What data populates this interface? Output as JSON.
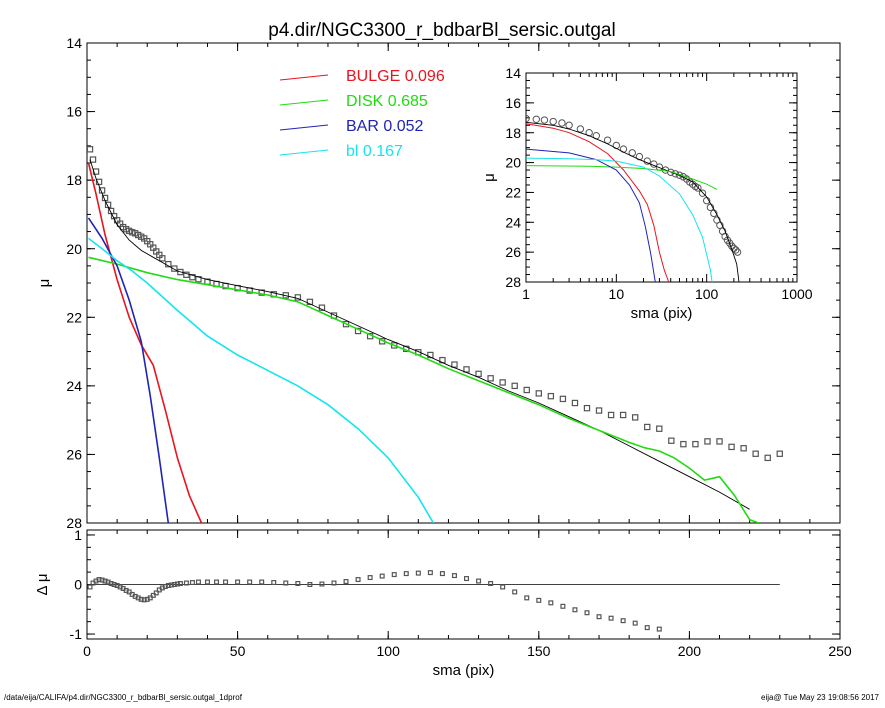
{
  "title": "p4.dir/NGC3300_r_bdbarBl_sersic.outgal",
  "footer_left": "/data/eija/CALIFA/p4.dir/NGC3300_r_bdbarBl_sersic.outgal_1dprof",
  "footer_right": "eija@  Tue May 23 19:08:56 2017",
  "colors": {
    "bulge": "#e8141e",
    "disk": "#1fdc10",
    "bar": "#1f24b4",
    "bl": "#15e4ee",
    "data": "#555555",
    "model": "#000000"
  },
  "chart_data": [
    {
      "id": "main",
      "type": "line",
      "xlabel": "sma (pix)",
      "ylabel": "μ",
      "xlim": [
        0,
        250
      ],
      "ylim": [
        28,
        14
      ],
      "y_inverted": true,
      "xticks": [
        "0",
        "50",
        "100",
        "150",
        "200",
        "250"
      ],
      "yticks": [
        "14",
        "16",
        "18",
        "20",
        "22",
        "24",
        "26",
        "28"
      ],
      "legend": [
        {
          "label": "BULGE",
          "value": "0.096",
          "color": "#e8141e"
        },
        {
          "label": "DISK",
          "value": "0.685",
          "color": "#1fdc10"
        },
        {
          "label": "BAR",
          "value": "0.052",
          "color": "#1f24b4"
        },
        {
          "label": "bl",
          "value": "0.167",
          "color": "#15e4ee"
        }
      ],
      "legend_position": "top-center",
      "series": [
        {
          "name": "data",
          "kind": "markers",
          "x": [
            1,
            2,
            3,
            4,
            5,
            6,
            7,
            8,
            9,
            10,
            11,
            12,
            13,
            14,
            15,
            16,
            17,
            18,
            19,
            20,
            21,
            22,
            23,
            24,
            25,
            27,
            29,
            31,
            33,
            35,
            37,
            40,
            43,
            46,
            50,
            54,
            58,
            62,
            66,
            70,
            74,
            78,
            82,
            86,
            90,
            94,
            98,
            102,
            106,
            110,
            114,
            118,
            122,
            126,
            130,
            134,
            138,
            142,
            146,
            150,
            154,
            158,
            162,
            166,
            170,
            174,
            178,
            182,
            186,
            190,
            194,
            198,
            202,
            206,
            210,
            214,
            218,
            222,
            226,
            230
          ],
          "y": [
            17.1,
            17.4,
            17.75,
            18.05,
            18.3,
            18.52,
            18.72,
            18.9,
            19.05,
            19.17,
            19.27,
            19.37,
            19.43,
            19.48,
            19.52,
            19.55,
            19.6,
            19.65,
            19.7,
            19.78,
            19.87,
            19.97,
            20.08,
            20.18,
            20.28,
            20.45,
            20.58,
            20.68,
            20.76,
            20.83,
            20.89,
            20.96,
            21.03,
            21.09,
            21.15,
            21.22,
            21.28,
            21.33,
            21.36,
            21.42,
            21.55,
            21.72,
            21.95,
            22.2,
            22.4,
            22.55,
            22.7,
            22.82,
            22.92,
            23.02,
            23.1,
            23.25,
            23.38,
            23.52,
            23.65,
            23.78,
            23.9,
            24.0,
            24.12,
            24.22,
            24.3,
            24.38,
            24.5,
            24.65,
            24.72,
            24.85,
            24.85,
            24.92,
            25.2,
            25.25,
            25.6,
            25.7,
            25.7,
            25.62,
            25.62,
            25.78,
            25.82,
            25.98,
            26.1,
            25.98
          ]
        },
        {
          "name": "model",
          "kind": "line",
          "x": [
            1,
            3,
            6,
            10,
            14,
            18,
            22,
            26,
            30,
            40,
            50,
            60,
            70,
            80,
            90,
            100,
            110,
            120,
            130,
            140,
            150,
            160,
            170,
            180,
            190,
            200,
            210,
            220
          ],
          "y": [
            17.4,
            17.95,
            18.6,
            19.3,
            19.75,
            20.05,
            20.25,
            20.45,
            20.65,
            20.9,
            21.08,
            21.25,
            21.45,
            21.85,
            22.25,
            22.65,
            23.0,
            23.4,
            23.75,
            24.15,
            24.5,
            24.9,
            25.3,
            25.75,
            26.2,
            26.65,
            27.1,
            27.6
          ]
        },
        {
          "name": "BULGE",
          "kind": "line",
          "x": [
            0.5,
            3,
            6,
            10,
            14,
            18,
            22,
            26,
            30,
            34,
            38
          ],
          "y": [
            17.5,
            18.4,
            19.6,
            20.9,
            22.0,
            22.8,
            23.4,
            24.7,
            26.1,
            27.2,
            28.0
          ]
        },
        {
          "name": "DISK",
          "kind": "line",
          "x": [
            0.5,
            10,
            20,
            30,
            40,
            50,
            60,
            70,
            75,
            80,
            90,
            100,
            110,
            120,
            130,
            140,
            150,
            160,
            170,
            180,
            185,
            190,
            195,
            200,
            205,
            210,
            215,
            220,
            223
          ],
          "y": [
            20.25,
            20.45,
            20.7,
            20.9,
            21.05,
            21.2,
            21.35,
            21.55,
            21.75,
            21.95,
            22.35,
            22.75,
            23.1,
            23.5,
            23.85,
            24.2,
            24.55,
            24.95,
            25.3,
            25.65,
            25.8,
            25.9,
            26.1,
            26.4,
            26.75,
            26.65,
            27.2,
            27.9,
            28.0
          ]
        },
        {
          "name": "BAR",
          "kind": "line",
          "x": [
            0.5,
            5,
            10,
            14,
            18,
            21,
            24,
            27
          ],
          "y": [
            19.1,
            19.7,
            20.5,
            21.5,
            22.7,
            24.3,
            26.1,
            28.0
          ]
        },
        {
          "name": "bl",
          "kind": "line",
          "x": [
            0.5,
            5,
            10,
            15,
            20,
            30,
            40,
            50,
            60,
            70,
            80,
            90,
            100,
            110,
            115
          ],
          "y": [
            19.7,
            20.0,
            20.35,
            20.65,
            21.0,
            21.8,
            22.55,
            23.1,
            23.55,
            24.0,
            24.55,
            25.25,
            26.1,
            27.25,
            28.0
          ]
        }
      ]
    },
    {
      "id": "inset",
      "type": "line",
      "xlabel": "sma (pix)",
      "ylabel": "μ",
      "xscale": "log",
      "xlim": [
        1,
        1000
      ],
      "ylim": [
        28,
        14
      ],
      "y_inverted": true,
      "xticks": [
        "1",
        "10",
        "100",
        "1000"
      ],
      "yticks": [
        "14",
        "16",
        "18",
        "20",
        "22",
        "24",
        "26",
        "28"
      ],
      "series": [
        {
          "name": "data",
          "kind": "markers",
          "x": [
            1,
            1.3,
            1.6,
            2,
            2.5,
            3,
            4,
            5,
            6,
            8,
            10,
            12,
            15,
            18,
            22,
            26,
            30,
            35,
            40,
            45,
            50,
            55,
            60,
            65,
            70,
            75,
            80,
            90,
            100,
            110,
            120,
            130,
            140,
            150,
            160,
            170,
            180,
            190,
            200,
            210,
            220
          ],
          "y": [
            17.05,
            17.1,
            17.15,
            17.25,
            17.35,
            17.5,
            17.75,
            18.0,
            18.2,
            18.5,
            18.85,
            19.1,
            19.35,
            19.6,
            19.9,
            20.1,
            20.3,
            20.5,
            20.65,
            20.75,
            20.85,
            20.95,
            21.1,
            21.3,
            21.45,
            21.6,
            21.7,
            22.05,
            22.55,
            23.0,
            23.4,
            23.85,
            24.2,
            24.6,
            24.95,
            25.2,
            25.4,
            25.6,
            25.75,
            25.85,
            26.0
          ]
        },
        {
          "name": "model",
          "kind": "line",
          "x": [
            1,
            2,
            3,
            5,
            8,
            12,
            18,
            25,
            35,
            50,
            70,
            100,
            130,
            160,
            190,
            215,
            228
          ],
          "y": [
            17.3,
            17.5,
            17.75,
            18.2,
            18.75,
            19.3,
            19.8,
            20.15,
            20.5,
            20.85,
            21.3,
            22.3,
            23.5,
            24.6,
            25.8,
            26.8,
            28.0
          ]
        },
        {
          "name": "BULGE",
          "kind": "line",
          "x": [
            1,
            2,
            3,
            5,
            8,
            12,
            18,
            22,
            26,
            30,
            34,
            38
          ],
          "y": [
            17.4,
            17.7,
            18.0,
            18.6,
            19.4,
            20.5,
            21.9,
            22.8,
            24.2,
            26.0,
            27.2,
            28.0
          ]
        },
        {
          "name": "DISK",
          "kind": "line",
          "x": [
            1,
            5,
            10,
            20,
            40,
            70,
            100,
            130
          ],
          "y": [
            20.2,
            20.25,
            20.3,
            20.4,
            20.6,
            21.1,
            21.45,
            21.8
          ]
        },
        {
          "name": "BAR",
          "kind": "line",
          "x": [
            1,
            3,
            6,
            10,
            14,
            18,
            21,
            24,
            27
          ],
          "y": [
            19.1,
            19.35,
            19.8,
            20.5,
            21.5,
            22.7,
            24.3,
            26.1,
            28.0
          ]
        },
        {
          "name": "bl",
          "kind": "line",
          "x": [
            1,
            3,
            6,
            10,
            20,
            30,
            50,
            70,
            90,
            110,
            115
          ],
          "y": [
            19.7,
            19.75,
            19.8,
            19.9,
            20.3,
            20.9,
            22.1,
            23.5,
            25.0,
            27.2,
            28.0
          ]
        }
      ]
    },
    {
      "id": "residual",
      "type": "scatter",
      "xlabel": "sma (pix)",
      "ylabel": "Δ μ",
      "xlim": [
        0,
        250
      ],
      "ylim": [
        -1.1,
        1.1
      ],
      "xticks": [
        "0",
        "50",
        "100",
        "150",
        "200",
        "250"
      ],
      "yticks": [
        "1",
        "0",
        "-1"
      ],
      "zero_line": {
        "x": [
          0,
          230
        ],
        "y": 0
      },
      "series": [
        {
          "name": "residual",
          "kind": "markers",
          "x": [
            1,
            2,
            3,
            4,
            5,
            6,
            7,
            8,
            9,
            10,
            11,
            12,
            13,
            14,
            15,
            16,
            17,
            18,
            19,
            20,
            21,
            22,
            23,
            24,
            25,
            26,
            27,
            28,
            29,
            30,
            31,
            33,
            35,
            37,
            40,
            43,
            46,
            50,
            54,
            58,
            62,
            66,
            70,
            74,
            78,
            82,
            86,
            90,
            94,
            98,
            102,
            106,
            110,
            114,
            118,
            122,
            126,
            130,
            134,
            138,
            142,
            146,
            150,
            154,
            158,
            162,
            166,
            170,
            174,
            178,
            182,
            186,
            190
          ],
          "y": [
            -0.05,
            0.03,
            0.07,
            0.1,
            0.09,
            0.07,
            0.05,
            0.02,
            0.0,
            -0.02,
            -0.05,
            -0.08,
            -0.12,
            -0.15,
            -0.2,
            -0.24,
            -0.27,
            -0.3,
            -0.31,
            -0.3,
            -0.27,
            -0.22,
            -0.17,
            -0.11,
            -0.07,
            -0.04,
            -0.02,
            -0.01,
            0.0,
            0.01,
            0.02,
            0.03,
            0.04,
            0.05,
            0.05,
            0.05,
            0.05,
            0.05,
            0.05,
            0.05,
            0.04,
            0.03,
            0.02,
            0.0,
            0.01,
            0.03,
            0.06,
            0.1,
            0.14,
            0.17,
            0.2,
            0.22,
            0.23,
            0.24,
            0.22,
            0.18,
            0.12,
            0.07,
            0.02,
            -0.05,
            -0.15,
            -0.27,
            -0.32,
            -0.37,
            -0.44,
            -0.51,
            -0.57,
            -0.65,
            -0.68,
            -0.73,
            -0.78,
            -0.87,
            -0.9
          ]
        }
      ]
    }
  ]
}
